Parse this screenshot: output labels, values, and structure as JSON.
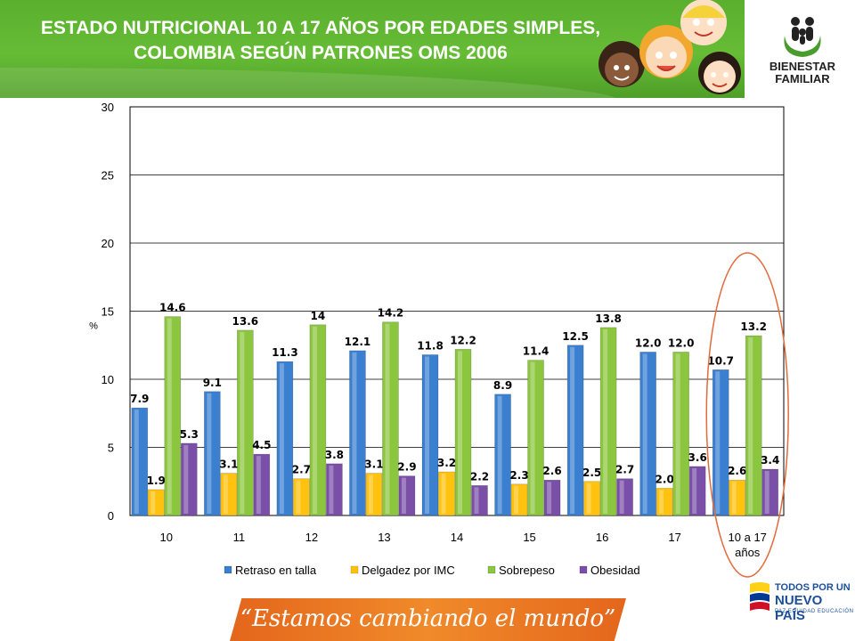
{
  "header": {
    "title_line1": "ESTADO NUTRICIONAL 10 A 17 AÑOS POR EDADES SIMPLES,",
    "title_line2": "COLOMBIA SEGÚN PATRONES OMS 2006"
  },
  "logo": {
    "line1": "BIENESTAR",
    "line2": "FAMILIAR"
  },
  "footer": {
    "slogan": "“Estamos cambiando el mundo”",
    "brand_line1": "TODOS POR UN",
    "brand_line2": "NUEVO PAÍS",
    "brand_line3": "PAZ  EQUIDAD  EDUCACIÓN"
  },
  "colors": {
    "header_green": "#5ab02e",
    "series": [
      "#3a7fd0",
      "#ffc20e",
      "#8cc63f",
      "#7a4fa8"
    ],
    "highlight_ellipse": "#e26b3c",
    "footer_orange": "#e97324"
  },
  "chart_data": {
    "type": "bar",
    "categories": [
      "10",
      "11",
      "12",
      "13",
      "14",
      "15",
      "16",
      "17",
      "10 a 17 años"
    ],
    "series": [
      {
        "name": "Retraso en talla",
        "values": [
          7.9,
          9.1,
          11.3,
          12.1,
          11.8,
          8.9,
          12.5,
          12.0,
          10.7
        ],
        "labels": [
          "7.9",
          "9.1",
          "11.3",
          "12.1",
          "11.8",
          "8.9",
          "12.5",
          "12.0",
          "10.7"
        ]
      },
      {
        "name": "Delgadez por IMC",
        "values": [
          1.9,
          3.1,
          2.7,
          3.1,
          3.2,
          2.3,
          2.5,
          2.0,
          2.6
        ],
        "labels": [
          "1.9",
          "3.1",
          "2.7",
          "3.1",
          "3.2",
          "2.3",
          "2.5",
          "2.0",
          "2.6"
        ]
      },
      {
        "name": "Sobrepeso",
        "values": [
          14.6,
          13.6,
          14,
          14.2,
          12.2,
          11.4,
          13.8,
          12.0,
          13.2
        ],
        "labels": [
          "14.6",
          "13.6",
          "14",
          "14.2",
          "12.2",
          "11.4",
          "13.8",
          "12.0",
          "13.2"
        ]
      },
      {
        "name": "Obesidad",
        "values": [
          5.3,
          4.5,
          3.8,
          2.9,
          2.2,
          2.6,
          2.7,
          3.6,
          3.4
        ],
        "labels": [
          "5.3",
          "4.5",
          "3.8",
          "2.9",
          "2.2",
          "2.6",
          "2.7",
          "3.6",
          "3.4"
        ]
      }
    ],
    "ylabel": "%",
    "ylim": [
      0,
      30
    ],
    "yticks": [
      0,
      5,
      10,
      15,
      20,
      25,
      30
    ],
    "grid": true,
    "legend": "bottom",
    "highlight": "10 a 17 años"
  }
}
